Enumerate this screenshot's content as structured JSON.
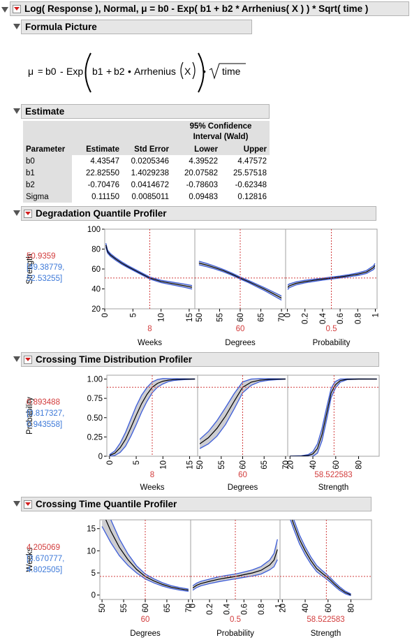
{
  "title": "Log( Response ), Normal, μ = b0 - Exp( b1 + b2 * Arrhenius( X ) ) * Sqrt( time )",
  "formula": {
    "header": "Formula Picture",
    "mu": "μ",
    "eq": "=",
    "b0": "b0",
    "minus": "-",
    "exp": "Exp",
    "b1": "b1",
    "plus": "+",
    "b2": "b2",
    "dot": "•",
    "arrhenius": "Arrhenius",
    "x": "X",
    "time": "time"
  },
  "estimate": {
    "header": "Estimate",
    "ci_title_1": "95% Confidence",
    "ci_title_2": "Interval (Wald)",
    "columns": [
      "Parameter",
      "Estimate",
      "Std Error",
      "Lower",
      "Upper"
    ],
    "rows": [
      [
        "b0",
        "4.43547",
        "0.0205346",
        "4.39522",
        "4.47572"
      ],
      [
        "b1",
        "22.82550",
        "1.4029238",
        "20.07582",
        "25.57518"
      ],
      [
        "b2",
        "-0.70476",
        "0.0414672",
        "-0.78603",
        "-0.62348"
      ],
      [
        "Sigma",
        "0.11150",
        "0.0085011",
        "0.09483",
        "0.12816"
      ]
    ]
  },
  "chart_data": [
    {
      "type": "line",
      "title": "Degradation Quantile Profiler",
      "ylabel": "Strength",
      "ylim": [
        20,
        100
      ],
      "yticks": [
        "20",
        "40",
        "60",
        "80",
        "100"
      ],
      "current_value": "50.9359",
      "current_ci_lower": "[49.38779,",
      "current_ci_upper": "52.53255]",
      "panels": [
        {
          "xlabel": "Weeks",
          "current_x": "8",
          "xlim": [
            0,
            16
          ],
          "xticks": [
            "0",
            "5",
            "10",
            "15"
          ],
          "cur_x": 8,
          "x": [
            0.2,
            0.5,
            1,
            2,
            3,
            4,
            6,
            8,
            10,
            12,
            14,
            15.5
          ],
          "y": [
            84,
            77.5,
            74.1,
            69.8,
            66,
            62.7,
            56.8,
            50.9,
            47.5,
            45.4,
            43.4,
            41.6
          ],
          "band": [
            1.8,
            1.5,
            1.4,
            1.3,
            1.2,
            1.1,
            1.0,
            1.0,
            1.2,
            1.4,
            1.6,
            1.8
          ]
        },
        {
          "xlabel": "Degrees",
          "current_x": "60",
          "xlim": [
            49,
            71
          ],
          "xticks": [
            "50",
            "55",
            "60",
            "65",
            "70"
          ],
          "cur_x": 60,
          "x": [
            50,
            52,
            54,
            56,
            58,
            60,
            62,
            64,
            66,
            68,
            70
          ],
          "y": [
            66,
            63.8,
            61.2,
            58.2,
            54.8,
            50.9,
            47.4,
            43.5,
            39.5,
            35.2,
            30.8
          ],
          "band": [
            1.8,
            1.6,
            1.4,
            1.2,
            1.1,
            1.0,
            1.1,
            1.3,
            1.5,
            1.8,
            2.1
          ]
        },
        {
          "xlabel": "Probability",
          "current_x": "0.5",
          "xlim": [
            -0.02,
            1.02
          ],
          "xticks": [
            "0",
            "0.2",
            "0.4",
            "0.6",
            "0.8",
            "1"
          ],
          "cur_x": 0.5,
          "x": [
            0.005,
            0.02,
            0.1,
            0.2,
            0.3,
            0.4,
            0.5,
            0.6,
            0.7,
            0.8,
            0.9,
            0.98,
            0.995
          ],
          "y": [
            41.5,
            43,
            45.6,
            47.3,
            48.6,
            49.8,
            50.9,
            52,
            53.3,
            54.8,
            57,
            61.4,
            63.5
          ],
          "band": [
            2.2,
            1.9,
            1.5,
            1.3,
            1.1,
            1.0,
            1.0,
            1.0,
            1.1,
            1.3,
            1.5,
            1.9,
            2.2
          ]
        }
      ]
    },
    {
      "type": "line",
      "title": "Crossing Time Distribution Profiler",
      "ylabel": "Probability",
      "ylim": [
        0,
        1.05
      ],
      "yticks": [
        "0",
        "0.25",
        "0.50",
        "0.75",
        "1.00"
      ],
      "current_value": "0.893488",
      "current_ci_lower": "[0.817327,",
      "current_ci_upper": "0.943558]",
      "panels": [
        {
          "xlabel": "Weeks",
          "current_x": "8",
          "xlim": [
            -0.5,
            16.5
          ],
          "xticks": [
            "0",
            "5",
            "10",
            "15"
          ],
          "cur_x": 8,
          "x": [
            0,
            1,
            2,
            3,
            4,
            5,
            6,
            7,
            8,
            9,
            10,
            11,
            12,
            13,
            14,
            15,
            16
          ],
          "y": [
            0.01,
            0.04,
            0.11,
            0.22,
            0.37,
            0.53,
            0.68,
            0.8,
            0.893,
            0.945,
            0.972,
            0.986,
            0.993,
            0.996,
            0.998,
            0.999,
            1.0
          ],
          "band": [
            0.01,
            0.03,
            0.06,
            0.09,
            0.11,
            0.12,
            0.11,
            0.09,
            0.07,
            0.05,
            0.035,
            0.02,
            0.012,
            0.008,
            0.005,
            0.003,
            0.002
          ]
        },
        {
          "xlabel": "Degrees",
          "current_x": "60",
          "xlim": [
            49.5,
            70.5
          ],
          "xticks": [
            "50",
            "55",
            "60",
            "65",
            "70"
          ],
          "cur_x": 60,
          "x": [
            50,
            52,
            54,
            56,
            58,
            60,
            62,
            64,
            66,
            68,
            70
          ],
          "y": [
            0.16,
            0.24,
            0.36,
            0.52,
            0.71,
            0.893,
            0.96,
            0.986,
            0.995,
            0.998,
            1.0
          ],
          "band": [
            0.06,
            0.08,
            0.1,
            0.11,
            0.1,
            0.07,
            0.04,
            0.02,
            0.01,
            0.005,
            0.002
          ]
        },
        {
          "xlabel": "Strength",
          "current_x": "58.522583",
          "xlim": [
            18,
            98
          ],
          "xticks": [
            "20",
            "40",
            "60",
            "80"
          ],
          "cur_x": 58.52,
          "x": [
            20,
            30,
            36,
            40,
            44,
            48,
            52,
            56,
            58.5,
            60,
            64,
            70,
            80,
            96
          ],
          "y": [
            0,
            0.002,
            0.01,
            0.03,
            0.1,
            0.28,
            0.55,
            0.82,
            0.893,
            0.93,
            0.98,
            0.997,
            1.0,
            1.0
          ],
          "band": [
            0.002,
            0.004,
            0.012,
            0.03,
            0.06,
            0.08,
            0.08,
            0.06,
            0.05,
            0.04,
            0.02,
            0.005,
            0.002,
            0.001
          ]
        }
      ]
    },
    {
      "type": "line",
      "title": "Crossing Time Quantile Profiler",
      "ylabel": "Weeks",
      "ylim": [
        -1,
        17
      ],
      "yticks": [
        "0",
        "5",
        "10",
        "15"
      ],
      "current_value": "4.205069",
      "current_ci_lower": "[3.670777,",
      "current_ci_upper": "4.802505]",
      "panels": [
        {
          "xlabel": "Degrees",
          "current_x": "60",
          "xlim": [
            49.5,
            70.5
          ],
          "xticks": [
            "50",
            "55",
            "60",
            "65",
            "70"
          ],
          "cur_x": 60,
          "x": [
            50,
            52,
            54,
            56,
            58,
            60,
            62,
            64,
            66,
            68,
            70
          ],
          "y": [
            19,
            14.5,
            10.8,
            8,
            5.8,
            4.2,
            3.2,
            2.4,
            1.8,
            1.4,
            1.1
          ],
          "band": [
            3.5,
            2.6,
            1.9,
            1.3,
            0.8,
            0.55,
            0.45,
            0.38,
            0.32,
            0.28,
            0.25
          ]
        },
        {
          "xlabel": "Probability",
          "current_x": "0.5",
          "xlim": [
            -0.02,
            1.02
          ],
          "xticks": [
            "0",
            "0.2",
            "0.4",
            "0.6",
            "0.8",
            "1"
          ],
          "cur_x": 0.5,
          "x": [
            0.005,
            0.05,
            0.1,
            0.2,
            0.3,
            0.4,
            0.5,
            0.6,
            0.7,
            0.8,
            0.9,
            0.95,
            0.99
          ],
          "y": [
            1.6,
            2.2,
            2.6,
            3.1,
            3.55,
            3.9,
            4.2,
            4.6,
            5.0,
            5.6,
            6.8,
            7.9,
            10.3
          ],
          "band": [
            0.5,
            0.5,
            0.5,
            0.5,
            0.55,
            0.55,
            0.55,
            0.6,
            0.7,
            0.85,
            1.1,
            1.5,
            2.3
          ]
        },
        {
          "xlabel": "Strength",
          "current_x": "58.522583",
          "xlim": [
            18,
            98
          ],
          "xticks": [
            "20",
            "40",
            "60",
            "80"
          ],
          "cur_x": 58.52,
          "x": [
            26,
            30,
            35,
            40,
            45,
            50,
            55,
            58.5,
            62,
            66,
            70,
            75,
            80
          ],
          "y": [
            19,
            16,
            12.6,
            10,
            7.8,
            6,
            4.9,
            4.2,
            3.4,
            2.4,
            1.5,
            0.6,
            0.05
          ],
          "band": [
            1.2,
            1.1,
            1.0,
            0.9,
            0.8,
            0.7,
            0.6,
            0.55,
            0.5,
            0.45,
            0.4,
            0.3,
            0.2
          ]
        }
      ]
    }
  ]
}
